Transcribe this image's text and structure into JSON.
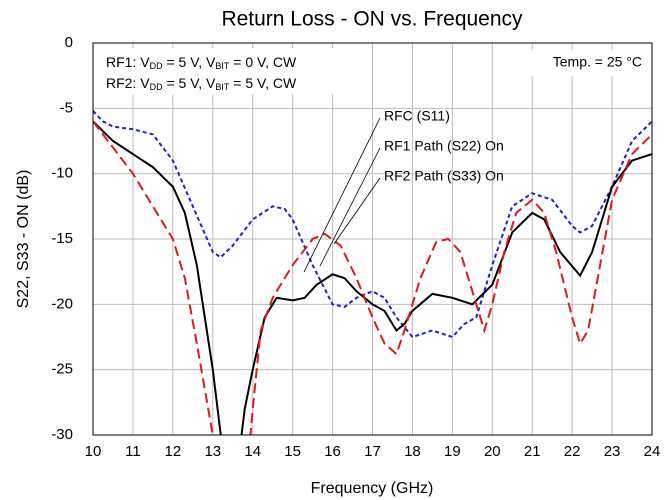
{
  "chart_data": {
    "type": "line",
    "title": "Return Loss - ON vs. Frequency",
    "x_label": "Frequency (GHz)",
    "y_label": "S22, S33 - ON (dB)",
    "xlim": [
      10,
      24
    ],
    "xticks": [
      10,
      11,
      12,
      13,
      14,
      15,
      16,
      17,
      18,
      19,
      20,
      21,
      22,
      23,
      24
    ],
    "ylim": [
      -30,
      0
    ],
    "yticks": [
      0,
      -5,
      -10,
      -15,
      -20,
      -25,
      -30
    ],
    "grid": true,
    "annotations": {
      "conditions": [
        [
          "RF1: V",
          "DD",
          " = 5 V, V",
          "BIT",
          " = 0 V, CW"
        ],
        [
          "RF2: V",
          "DD",
          " = 5 V, V",
          "BIT",
          " = 5 V, CW"
        ]
      ],
      "temperature": "Temp. = 25 °C"
    },
    "series": [
      {
        "name": "RFC (S11)",
        "color": "#1f1fd0",
        "dash": "dotted",
        "x": [
          10,
          10.25,
          10.5,
          11,
          11.5,
          12,
          12.5,
          13,
          13.2,
          13.5,
          14,
          14.5,
          14.8,
          15,
          15.5,
          16,
          16.3,
          16.6,
          17,
          17.3,
          17.6,
          18,
          18.5,
          19,
          19.3,
          19.6,
          20,
          20.5,
          21,
          21.5,
          22,
          22.2,
          22.5,
          23,
          23.5,
          24
        ],
        "values": [
          -5.2,
          -6,
          -6.4,
          -6.6,
          -7,
          -9,
          -12.5,
          -16,
          -16.4,
          -15.5,
          -13.5,
          -12.5,
          -12.7,
          -13.5,
          -17,
          -20,
          -20.2,
          -19.5,
          -19,
          -19.5,
          -21,
          -22.5,
          -22,
          -22.5,
          -21.5,
          -21,
          -17,
          -12.5,
          -11.5,
          -12,
          -14,
          -14.5,
          -14,
          -11,
          -7.5,
          -6
        ]
      },
      {
        "name": "RF1 Path (S22) On",
        "color": "#000000",
        "dash": "solid",
        "x": [
          10,
          10.5,
          11,
          11.5,
          12,
          12.3,
          12.6,
          13,
          13.2,
          13.3,
          13.6,
          13.8,
          14,
          14.3,
          14.6,
          15,
          15.3,
          15.6,
          16,
          16.3,
          16.6,
          17,
          17.3,
          17.6,
          17.8,
          18,
          18.5,
          19,
          19.5,
          20,
          20.5,
          21,
          21.3,
          21.7,
          22.2,
          22.5,
          23,
          23.5,
          24
        ],
        "values": [
          -6,
          -7.5,
          -8.5,
          -9.5,
          -11,
          -13,
          -17,
          -25,
          -30,
          -33,
          -33,
          -28,
          -25,
          -21,
          -19.5,
          -19.7,
          -19.5,
          -18.5,
          -17.7,
          -18,
          -19,
          -20,
          -20.5,
          -22,
          -21.5,
          -20.5,
          -19.2,
          -19.5,
          -20,
          -18.5,
          -14.5,
          -13,
          -13.5,
          -16,
          -17.8,
          -16,
          -11,
          -9,
          -8.5
        ]
      },
      {
        "name": "RF2 Path (S33) On",
        "color": "#e0191e",
        "dash": "dashed",
        "x": [
          10,
          10.5,
          11,
          11.5,
          12,
          12.3,
          12.6,
          13,
          13.2,
          13.8,
          14,
          14.2,
          14.5,
          15,
          15.5,
          15.8,
          16.2,
          16.6,
          17,
          17.3,
          17.6,
          17.8,
          18.2,
          18.6,
          18.9,
          19.2,
          19.5,
          19.8,
          20,
          20.3,
          20.6,
          21,
          21.3,
          21.6,
          22,
          22.2,
          22.4,
          22.7,
          23,
          23.5,
          24
        ],
        "values": [
          -6,
          -8,
          -10,
          -12.5,
          -15,
          -18,
          -23,
          -30,
          -35,
          -35,
          -28,
          -22,
          -19.5,
          -17,
          -15,
          -14.6,
          -15.5,
          -18,
          -21,
          -23,
          -23.8,
          -22,
          -18,
          -15.2,
          -15,
          -16,
          -19,
          -22,
          -20,
          -16,
          -13,
          -12,
          -13,
          -16,
          -21,
          -23,
          -22,
          -17,
          -12,
          -8.5,
          -7
        ]
      }
    ]
  }
}
